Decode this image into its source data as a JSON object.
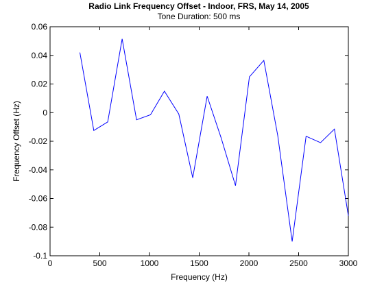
{
  "chart_data": {
    "type": "line",
    "title": "Radio Link Frequency Offset - Indoor, FRS, May 14, 2005",
    "subtitle": "Tone Duration: 500 ms",
    "xlabel": "Frequency (Hz)",
    "ylabel": "Frequency Offset (Hz)",
    "xlim": [
      0,
      3000
    ],
    "ylim": [
      -0.1,
      0.06
    ],
    "x_ticks": [
      "0",
      "500",
      "1000",
      "1500",
      "2000",
      "2500",
      "3000"
    ],
    "y_ticks": [
      "0.06",
      "0.04",
      "0.02",
      "0",
      "-0.02",
      "-0.04",
      "-0.06",
      "-0.08",
      "-0.1"
    ],
    "x_tick_values": [
      0,
      500,
      1000,
      1500,
      2000,
      2500,
      3000
    ],
    "y_tick_values": [
      0.06,
      0.04,
      0.02,
      0,
      -0.02,
      -0.04,
      -0.06,
      -0.08,
      -0.1
    ],
    "grid": false,
    "line_color": "#0000ff",
    "series": [
      {
        "x": [
          300,
          440,
          580,
          725,
          870,
          1010,
          1150,
          1295,
          1435,
          1580,
          1720,
          1865,
          2005,
          2150,
          2290,
          2435,
          2575,
          2720,
          2860,
          3000
        ],
        "values": [
          0.042,
          -0.0125,
          -0.0065,
          0.0515,
          -0.005,
          -0.0015,
          0.015,
          -0.001,
          -0.0455,
          0.0115,
          -0.0175,
          -0.051,
          0.025,
          0.0365,
          -0.016,
          -0.09,
          -0.0165,
          -0.021,
          -0.0115,
          -0.072
        ]
      }
    ]
  }
}
